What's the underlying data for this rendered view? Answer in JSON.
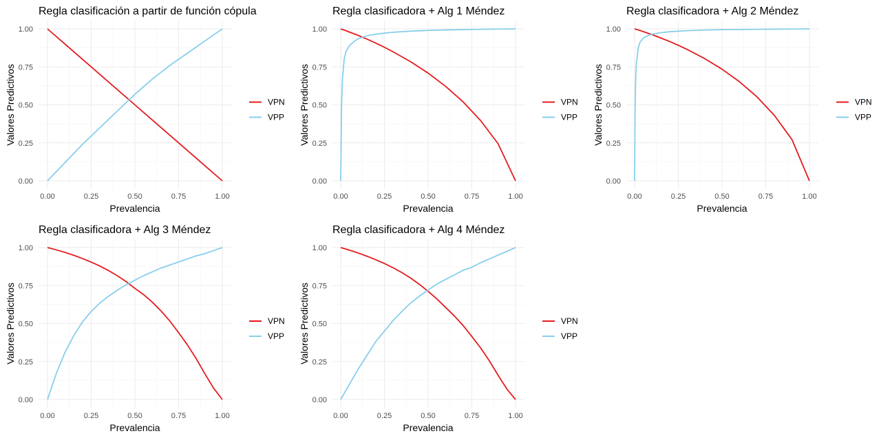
{
  "chart_data": [
    {
      "type": "line",
      "title": "Regla clasificación a partir de función cópula",
      "xlabel": "Prevalencia",
      "ylabel": "Valores Predictivos",
      "xlim": [
        0,
        1
      ],
      "ylim": [
        0,
        1
      ],
      "x_ticks": [
        "0.00",
        "0.25",
        "0.50",
        "0.75",
        "1.00"
      ],
      "y_ticks": [
        "0.00",
        "0.25",
        "0.50",
        "0.75",
        "1.00"
      ],
      "grid": true,
      "legend": "right",
      "x": [
        0,
        0.1,
        0.2,
        0.3,
        0.4,
        0.5,
        0.6,
        0.7,
        0.8,
        0.9,
        1.0
      ],
      "series": [
        {
          "name": "VPN",
          "color": "#e41a1c",
          "values": [
            1.0,
            0.9,
            0.8,
            0.7,
            0.6,
            0.5,
            0.4,
            0.3,
            0.2,
            0.1,
            0.0
          ]
        },
        {
          "name": "VPP",
          "color": "#87ceeb",
          "values": [
            0.0,
            0.12,
            0.24,
            0.35,
            0.46,
            0.57,
            0.67,
            0.76,
            0.84,
            0.92,
            1.0
          ]
        }
      ]
    },
    {
      "type": "line",
      "title": "Regla clasificadora + Alg 1 Méndez",
      "xlabel": "Prevalencia",
      "ylabel": "Valores Predictivos",
      "xlim": [
        0,
        1
      ],
      "ylim": [
        0,
        1
      ],
      "x_ticks": [
        "0.00",
        "0.25",
        "0.50",
        "0.75",
        "1.00"
      ],
      "y_ticks": [
        "0.00",
        "0.25",
        "0.50",
        "0.75",
        "1.00"
      ],
      "grid": true,
      "legend": "right",
      "x": [
        0,
        0.005,
        0.01,
        0.02,
        0.03,
        0.05,
        0.08,
        0.1,
        0.15,
        0.2,
        0.25,
        0.3,
        0.4,
        0.5,
        0.6,
        0.7,
        0.8,
        0.9,
        1.0
      ],
      "series": [
        {
          "name": "VPN",
          "color": "#e41a1c",
          "values": [
            1.0,
            0.998,
            0.996,
            0.992,
            0.988,
            0.979,
            0.966,
            0.957,
            0.933,
            0.907,
            0.879,
            0.849,
            0.784,
            0.709,
            0.622,
            0.52,
            0.397,
            0.245,
            0.0
          ]
        },
        {
          "name": "VPP",
          "color": "#87ceeb",
          "values": [
            0.0,
            0.5,
            0.67,
            0.8,
            0.85,
            0.89,
            0.92,
            0.935,
            0.955,
            0.965,
            0.972,
            0.978,
            0.985,
            0.99,
            0.993,
            0.995,
            0.997,
            0.999,
            1.0
          ]
        }
      ]
    },
    {
      "type": "line",
      "title": "Regla clasificadora + Alg 2 Méndez",
      "xlabel": "Prevalencia",
      "ylabel": "Valores Predictivos",
      "xlim": [
        0,
        1
      ],
      "ylim": [
        0,
        1
      ],
      "x_ticks": [
        "0.00",
        "0.25",
        "0.50",
        "0.75",
        "1.00"
      ],
      "y_ticks": [
        "0.00",
        "0.25",
        "0.50",
        "0.75",
        "1.00"
      ],
      "grid": true,
      "legend": "right",
      "x": [
        0,
        0.003,
        0.007,
        0.01,
        0.02,
        0.03,
        0.05,
        0.08,
        0.1,
        0.15,
        0.2,
        0.25,
        0.3,
        0.4,
        0.5,
        0.6,
        0.7,
        0.8,
        0.9,
        1.0
      ],
      "series": [
        {
          "name": "VPN",
          "color": "#e41a1c",
          "values": [
            1.0,
            0.999,
            0.998,
            0.997,
            0.993,
            0.99,
            0.982,
            0.97,
            0.962,
            0.94,
            0.917,
            0.892,
            0.865,
            0.805,
            0.735,
            0.652,
            0.553,
            0.43,
            0.272,
            0.0
          ]
        },
        {
          "name": "VPP",
          "color": "#87ceeb",
          "values": [
            0.0,
            0.5,
            0.7,
            0.77,
            0.87,
            0.91,
            0.94,
            0.958,
            0.965,
            0.975,
            0.981,
            0.985,
            0.988,
            0.992,
            0.995,
            0.996,
            0.997,
            0.998,
            0.999,
            1.0
          ]
        }
      ]
    },
    {
      "type": "line",
      "title": "Regla clasificadora + Alg 3 Méndez",
      "xlabel": "Prevalencia",
      "ylabel": "Valores Predictivos",
      "xlim": [
        0,
        1
      ],
      "ylim": [
        0,
        1
      ],
      "x_ticks": [
        "0.00",
        "0.25",
        "0.50",
        "0.75",
        "1.00"
      ],
      "y_ticks": [
        "0.00",
        "0.25",
        "0.50",
        "0.75",
        "1.00"
      ],
      "grid": true,
      "legend": "right",
      "x": [
        0,
        0.05,
        0.1,
        0.15,
        0.2,
        0.25,
        0.3,
        0.35,
        0.4,
        0.45,
        0.5,
        0.55,
        0.6,
        0.65,
        0.7,
        0.75,
        0.8,
        0.85,
        0.9,
        0.95,
        1.0
      ],
      "series": [
        {
          "name": "VPN",
          "color": "#e41a1c",
          "values": [
            1.0,
            0.985,
            0.968,
            0.949,
            0.928,
            0.904,
            0.878,
            0.848,
            0.814,
            0.776,
            0.731,
            0.69,
            0.64,
            0.582,
            0.516,
            0.44,
            0.36,
            0.27,
            0.17,
            0.075,
            0.0
          ]
        },
        {
          "name": "VPP",
          "color": "#87ceeb",
          "values": [
            0.0,
            0.17,
            0.31,
            0.42,
            0.51,
            0.58,
            0.635,
            0.68,
            0.72,
            0.755,
            0.785,
            0.815,
            0.84,
            0.865,
            0.885,
            0.905,
            0.925,
            0.945,
            0.96,
            0.98,
            1.0
          ]
        }
      ]
    },
    {
      "type": "line",
      "title": "Regla clasificadora + Alg 4 Méndez",
      "xlabel": "Prevalencia",
      "ylabel": "Valores Predictivos",
      "xlim": [
        0,
        1
      ],
      "ylim": [
        0,
        1
      ],
      "x_ticks": [
        "0.00",
        "0.25",
        "0.50",
        "0.75",
        "1.00"
      ],
      "y_ticks": [
        "0.00",
        "0.25",
        "0.50",
        "0.75",
        "1.00"
      ],
      "grid": true,
      "legend": "right",
      "x": [
        0,
        0.05,
        0.1,
        0.15,
        0.2,
        0.25,
        0.3,
        0.35,
        0.4,
        0.45,
        0.5,
        0.55,
        0.6,
        0.65,
        0.7,
        0.75,
        0.8,
        0.85,
        0.9,
        0.95,
        1.0
      ],
      "series": [
        {
          "name": "VPN",
          "color": "#e41a1c",
          "values": [
            1.0,
            0.983,
            0.964,
            0.943,
            0.92,
            0.895,
            0.867,
            0.835,
            0.799,
            0.758,
            0.712,
            0.662,
            0.606,
            0.55,
            0.487,
            0.415,
            0.34,
            0.255,
            0.16,
            0.07,
            0.0
          ]
        },
        {
          "name": "VPP",
          "color": "#87ceeb",
          "values": [
            0.0,
            0.1,
            0.2,
            0.29,
            0.38,
            0.45,
            0.52,
            0.58,
            0.635,
            0.68,
            0.72,
            0.76,
            0.79,
            0.82,
            0.85,
            0.87,
            0.9,
            0.925,
            0.95,
            0.975,
            1.0
          ]
        }
      ]
    }
  ]
}
